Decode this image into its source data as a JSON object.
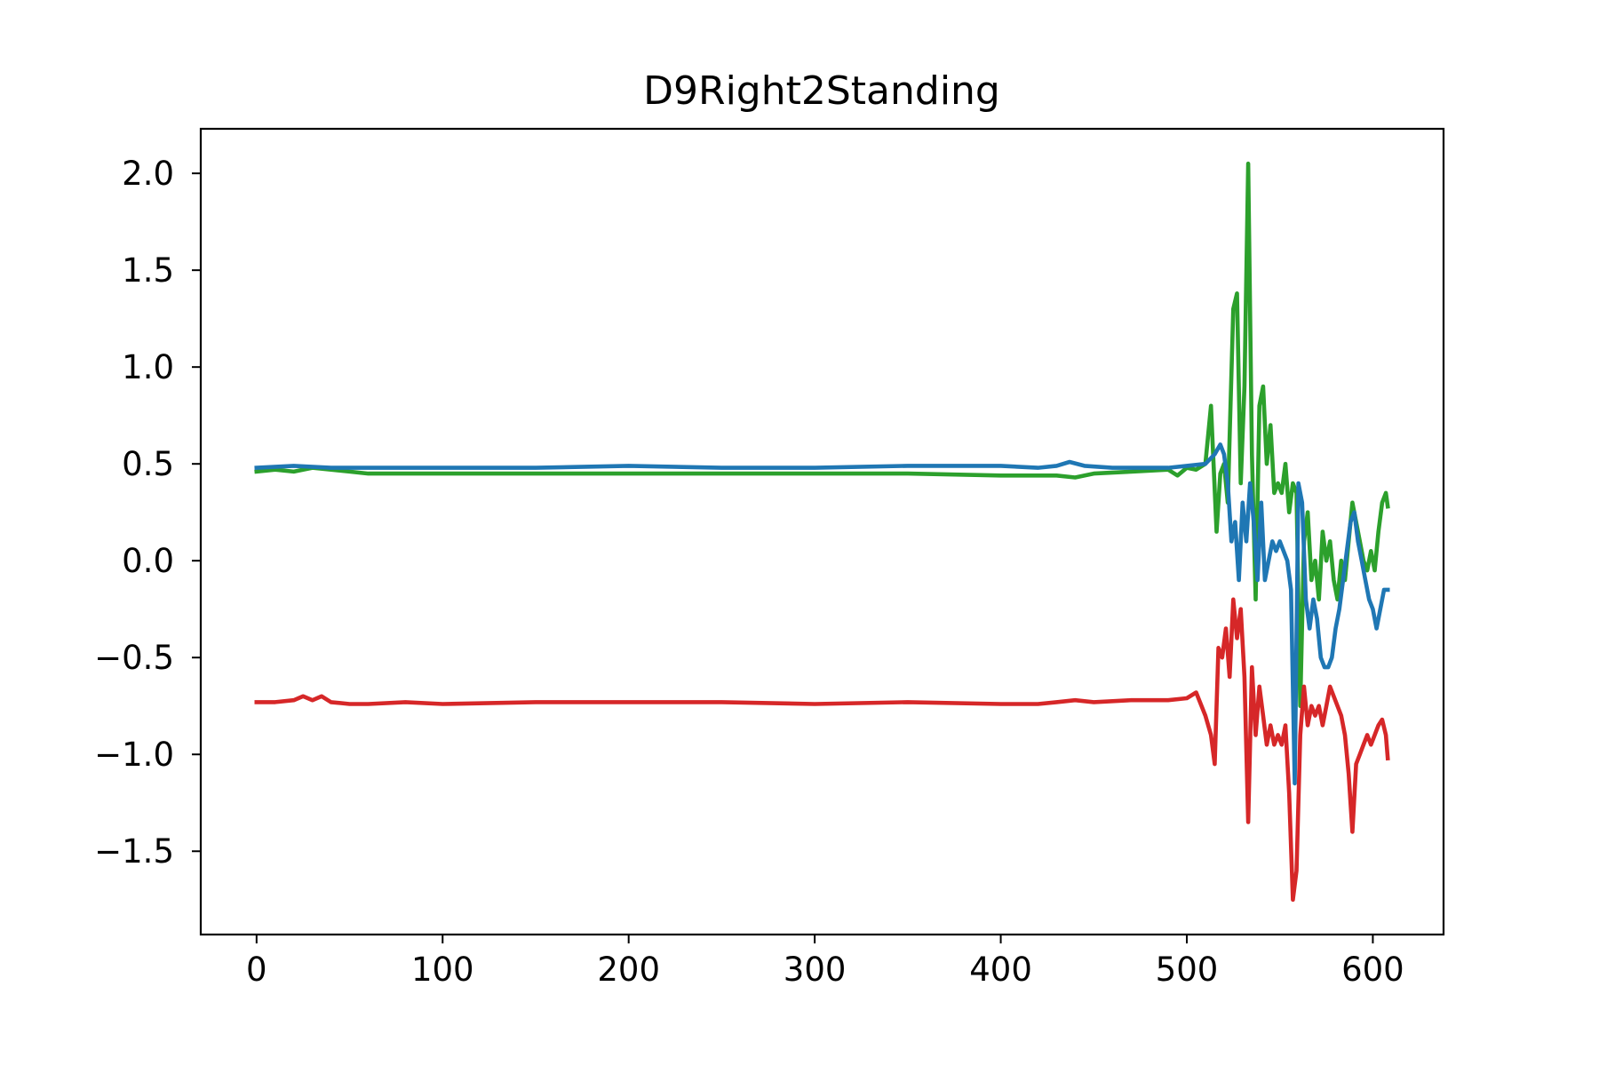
{
  "chart_data": {
    "type": "line",
    "title": "D9Right2Standing",
    "xlabel": "",
    "ylabel": "",
    "xlim": [
      -30,
      638
    ],
    "ylim": [
      -1.93,
      2.23
    ],
    "xticks": [
      0,
      100,
      200,
      300,
      400,
      500,
      600
    ],
    "xtick_labels": [
      "0",
      "100",
      "200",
      "300",
      "400",
      "500",
      "600"
    ],
    "yticks": [
      2.0,
      1.5,
      1.0,
      0.5,
      0.0,
      -0.5,
      -1.0,
      -1.5
    ],
    "ytick_labels": [
      "2.0",
      "1.5",
      "1.0",
      "0.5",
      "0.0",
      "−0.5",
      "−1.0",
      "−1.5"
    ],
    "grid": false,
    "legend": "none",
    "series": [
      {
        "color": "#2ca02c",
        "points": [
          [
            0,
            0.46
          ],
          [
            10,
            0.47
          ],
          [
            20,
            0.46
          ],
          [
            30,
            0.48
          ],
          [
            40,
            0.47
          ],
          [
            50,
            0.46
          ],
          [
            60,
            0.45
          ],
          [
            80,
            0.45
          ],
          [
            100,
            0.45
          ],
          [
            150,
            0.45
          ],
          [
            200,
            0.45
          ],
          [
            250,
            0.45
          ],
          [
            300,
            0.45
          ],
          [
            350,
            0.45
          ],
          [
            400,
            0.44
          ],
          [
            420,
            0.44
          ],
          [
            430,
            0.44
          ],
          [
            440,
            0.43
          ],
          [
            450,
            0.45
          ],
          [
            470,
            0.46
          ],
          [
            490,
            0.47
          ],
          [
            495,
            0.44
          ],
          [
            500,
            0.48
          ],
          [
            505,
            0.47
          ],
          [
            510,
            0.5
          ],
          [
            513,
            0.8
          ],
          [
            516,
            0.15
          ],
          [
            518,
            0.45
          ],
          [
            520,
            0.5
          ],
          [
            522,
            0.3
          ],
          [
            525,
            1.3
          ],
          [
            527,
            1.38
          ],
          [
            529,
            0.4
          ],
          [
            531,
            0.9
          ],
          [
            533,
            2.05
          ],
          [
            535,
            0.55
          ],
          [
            537,
            -0.2
          ],
          [
            539,
            0.8
          ],
          [
            541,
            0.9
          ],
          [
            543,
            0.5
          ],
          [
            545,
            0.7
          ],
          [
            547,
            0.35
          ],
          [
            549,
            0.4
          ],
          [
            551,
            0.35
          ],
          [
            553,
            0.5
          ],
          [
            555,
            0.25
          ],
          [
            557,
            0.4
          ],
          [
            559,
            0.35
          ],
          [
            561,
            -0.75
          ],
          [
            563,
            0.1
          ],
          [
            565,
            0.25
          ],
          [
            567,
            -0.1
          ],
          [
            569,
            0.0
          ],
          [
            571,
            -0.2
          ],
          [
            573,
            0.15
          ],
          [
            575,
            0.0
          ],
          [
            577,
            0.1
          ],
          [
            579,
            -0.1
          ],
          [
            581,
            -0.2
          ],
          [
            583,
            0.0
          ],
          [
            585,
            -0.1
          ],
          [
            587,
            0.1
          ],
          [
            589,
            0.3
          ],
          [
            591,
            0.2
          ],
          [
            593,
            0.1
          ],
          [
            595,
            0.0
          ],
          [
            597,
            -0.05
          ],
          [
            599,
            0.05
          ],
          [
            601,
            -0.05
          ],
          [
            603,
            0.15
          ],
          [
            605,
            0.3
          ],
          [
            607,
            0.35
          ],
          [
            608,
            0.28
          ]
        ]
      },
      {
        "color": "#1f77b4",
        "points": [
          [
            0,
            0.48
          ],
          [
            20,
            0.49
          ],
          [
            40,
            0.48
          ],
          [
            60,
            0.48
          ],
          [
            100,
            0.48
          ],
          [
            150,
            0.48
          ],
          [
            200,
            0.49
          ],
          [
            250,
            0.48
          ],
          [
            300,
            0.48
          ],
          [
            350,
            0.49
          ],
          [
            400,
            0.49
          ],
          [
            420,
            0.48
          ],
          [
            430,
            0.49
          ],
          [
            437,
            0.51
          ],
          [
            445,
            0.49
          ],
          [
            460,
            0.48
          ],
          [
            480,
            0.48
          ],
          [
            490,
            0.48
          ],
          [
            500,
            0.49
          ],
          [
            510,
            0.5
          ],
          [
            515,
            0.55
          ],
          [
            518,
            0.6
          ],
          [
            520,
            0.55
          ],
          [
            522,
            0.4
          ],
          [
            524,
            0.1
          ],
          [
            526,
            0.2
          ],
          [
            528,
            -0.1
          ],
          [
            530,
            0.3
          ],
          [
            532,
            0.1
          ],
          [
            534,
            0.4
          ],
          [
            536,
            0.2
          ],
          [
            538,
            -0.1
          ],
          [
            540,
            0.3
          ],
          [
            542,
            -0.1
          ],
          [
            544,
            0.0
          ],
          [
            546,
            0.1
          ],
          [
            548,
            0.05
          ],
          [
            550,
            0.1
          ],
          [
            552,
            0.05
          ],
          [
            554,
            0.0
          ],
          [
            556,
            -0.15
          ],
          [
            558,
            -1.15
          ],
          [
            560,
            0.4
          ],
          [
            562,
            0.3
          ],
          [
            564,
            -0.2
          ],
          [
            566,
            -0.35
          ],
          [
            568,
            -0.2
          ],
          [
            570,
            -0.3
          ],
          [
            572,
            -0.5
          ],
          [
            574,
            -0.55
          ],
          [
            576,
            -0.55
          ],
          [
            578,
            -0.5
          ],
          [
            580,
            -0.35
          ],
          [
            582,
            -0.25
          ],
          [
            584,
            -0.1
          ],
          [
            586,
            0.05
          ],
          [
            588,
            0.2
          ],
          [
            590,
            0.25
          ],
          [
            592,
            0.1
          ],
          [
            594,
            0.0
          ],
          [
            596,
            -0.1
          ],
          [
            598,
            -0.2
          ],
          [
            600,
            -0.25
          ],
          [
            602,
            -0.35
          ],
          [
            604,
            -0.25
          ],
          [
            606,
            -0.15
          ],
          [
            608,
            -0.15
          ]
        ]
      },
      {
        "color": "#d62728",
        "points": [
          [
            0,
            -0.73
          ],
          [
            10,
            -0.73
          ],
          [
            20,
            -0.72
          ],
          [
            25,
            -0.7
          ],
          [
            30,
            -0.72
          ],
          [
            35,
            -0.7
          ],
          [
            40,
            -0.73
          ],
          [
            50,
            -0.74
          ],
          [
            60,
            -0.74
          ],
          [
            80,
            -0.73
          ],
          [
            100,
            -0.74
          ],
          [
            150,
            -0.73
          ],
          [
            200,
            -0.73
          ],
          [
            250,
            -0.73
          ],
          [
            300,
            -0.74
          ],
          [
            350,
            -0.73
          ],
          [
            400,
            -0.74
          ],
          [
            420,
            -0.74
          ],
          [
            430,
            -0.73
          ],
          [
            440,
            -0.72
          ],
          [
            450,
            -0.73
          ],
          [
            470,
            -0.72
          ],
          [
            490,
            -0.72
          ],
          [
            500,
            -0.71
          ],
          [
            505,
            -0.68
          ],
          [
            510,
            -0.8
          ],
          [
            513,
            -0.9
          ],
          [
            515,
            -1.05
          ],
          [
            517,
            -0.45
          ],
          [
            519,
            -0.5
          ],
          [
            521,
            -0.35
          ],
          [
            523,
            -0.6
          ],
          [
            525,
            -0.2
          ],
          [
            527,
            -0.4
          ],
          [
            529,
            -0.25
          ],
          [
            531,
            -0.6
          ],
          [
            533,
            -1.35
          ],
          [
            535,
            -0.55
          ],
          [
            537,
            -0.9
          ],
          [
            539,
            -0.65
          ],
          [
            541,
            -0.8
          ],
          [
            543,
            -0.95
          ],
          [
            545,
            -0.85
          ],
          [
            547,
            -0.95
          ],
          [
            549,
            -0.9
          ],
          [
            551,
            -0.95
          ],
          [
            553,
            -0.85
          ],
          [
            555,
            -1.2
          ],
          [
            557,
            -1.75
          ],
          [
            559,
            -1.6
          ],
          [
            561,
            -0.9
          ],
          [
            563,
            -0.65
          ],
          [
            565,
            -0.85
          ],
          [
            567,
            -0.75
          ],
          [
            569,
            -0.8
          ],
          [
            571,
            -0.75
          ],
          [
            573,
            -0.85
          ],
          [
            575,
            -0.75
          ],
          [
            577,
            -0.65
          ],
          [
            579,
            -0.7
          ],
          [
            581,
            -0.75
          ],
          [
            583,
            -0.8
          ],
          [
            585,
            -0.9
          ],
          [
            587,
            -1.1
          ],
          [
            589,
            -1.4
          ],
          [
            591,
            -1.05
          ],
          [
            593,
            -1.0
          ],
          [
            595,
            -0.95
          ],
          [
            597,
            -0.9
          ],
          [
            599,
            -0.95
          ],
          [
            601,
            -0.9
          ],
          [
            603,
            -0.85
          ],
          [
            605,
            -0.82
          ],
          [
            607,
            -0.9
          ],
          [
            608,
            -1.02
          ]
        ]
      }
    ]
  }
}
